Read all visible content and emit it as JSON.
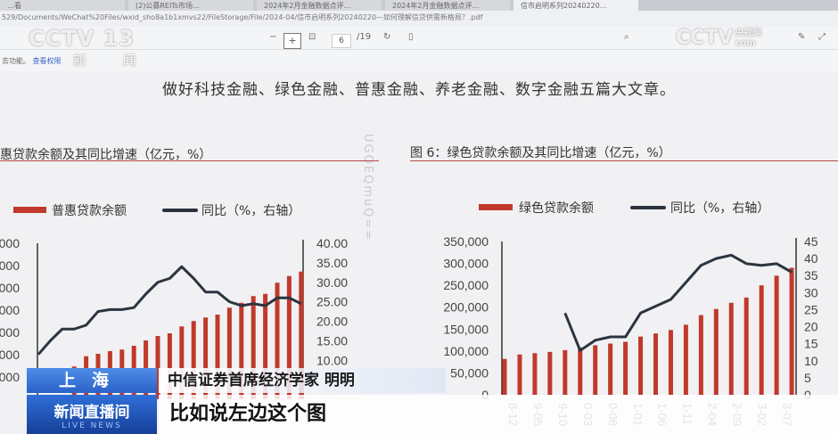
{
  "browser": {
    "tabs": [
      "…看",
      "(2)公募REITs市场…",
      "2024年2月金融数据点评…",
      "2024年2月金融数据点评…",
      "信市启明系列20240220…"
    ],
    "address": "529/Documents/WeChat%20Files/wxid_sho8a1b1xmvs22/FileStorage/File/2024-04/信市启明系列20240220—如何理解信贷供需新格局？.pdf"
  },
  "pdf_toolbar": {
    "minus": "−",
    "plus": "+",
    "fit_icon": "fit-page-icon",
    "page": "6",
    "total": "/19",
    "rotate_icon": "rotate-icon",
    "doc_icon": "document-icon"
  },
  "subbar": {
    "text": "去功能。",
    "link": "查看权限"
  },
  "document": {
    "heading": "做好科技金融、绿色金融、普惠金融、养老金融、数字金融五篇大文章。",
    "watermark": "UGQEQmuQ=="
  },
  "overlay": {
    "channel_logo": "CCTV 13",
    "channel_sub": "新 闻",
    "site_logo": "CCTV",
    "site_sub": "央视网",
    "site_sub2": "com",
    "location": "上海",
    "person": "中信证券首席经济学家 明明",
    "program": "新闻直播间",
    "program_en": "LIVE NEWS",
    "subtitle": "比如说左边这个图"
  },
  "colors": {
    "bar": "#c0392b",
    "line": "#2b3440",
    "lower_third_blue": "#2a62c9"
  },
  "chart_data": [
    {
      "type": "bar+line",
      "title": "惠贷款余额及其同比增速（亿元，%）",
      "legend": [
        "普惠贷款余额",
        "同比（%，右轴）"
      ],
      "legend_placement": "top",
      "ylim_left": [
        0,
        350000
      ],
      "left_tick_labels": [
        "000",
        "000",
        "000",
        "000",
        "000",
        "000",
        "000"
      ],
      "ylim_right": [
        0,
        40
      ],
      "right_tick_labels": [
        "40.00",
        "35.00",
        "30.00",
        "25.00",
        "20.00",
        "15.00",
        "10.00"
      ],
      "bars": [
        null,
        null,
        null,
        73500,
        96500,
        102000,
        108000,
        111500,
        120000,
        132000,
        142000,
        148000,
        163500,
        175500,
        183500,
        190000,
        205500,
        216500,
        231500,
        236500,
        261500,
        276500,
        286500
      ],
      "line": [
        11.5,
        15,
        18,
        18,
        19,
        22.5,
        23,
        23,
        23.5,
        27,
        30,
        31,
        34,
        31,
        27.5,
        27.5,
        25,
        24,
        24.5,
        24,
        26,
        26,
        24.5
      ]
    },
    {
      "type": "bar+line",
      "title": "图 6：绿色贷款余额及其同比增速（亿元，%）",
      "legend": [
        "绿色贷款余额",
        "同比（%，右轴）"
      ],
      "legend_placement": "top",
      "ylim_left": [
        0,
        350000
      ],
      "left_tick_labels": [
        "350,000",
        "300,000",
        "250,000",
        "200,000",
        "150,000",
        "100,000",
        "50,000",
        "0"
      ],
      "ylim_right": [
        0,
        45
      ],
      "right_tick_labels": [
        "45",
        "40",
        "35",
        "30",
        "25",
        "20",
        "15",
        "10",
        "5",
        "0"
      ],
      "x_tick_labels": [
        "8-12",
        "9-05",
        "9-10",
        "0-03",
        "0-08",
        "1-01",
        "1-06",
        "1-11",
        "2-04",
        "2-09",
        "3-02",
        "3-07"
      ],
      "bars": [
        82000,
        92000,
        95000,
        98000,
        102000,
        108000,
        113000,
        117000,
        121000,
        133000,
        140000,
        148000,
        160000,
        182000,
        196000,
        210000,
        222000,
        250000,
        272000,
        290000
      ],
      "line": [
        null,
        null,
        null,
        null,
        24,
        13,
        16,
        17,
        17,
        24,
        26,
        28,
        33,
        38,
        40,
        41,
        38.5,
        38,
        38.5,
        36
      ]
    }
  ]
}
